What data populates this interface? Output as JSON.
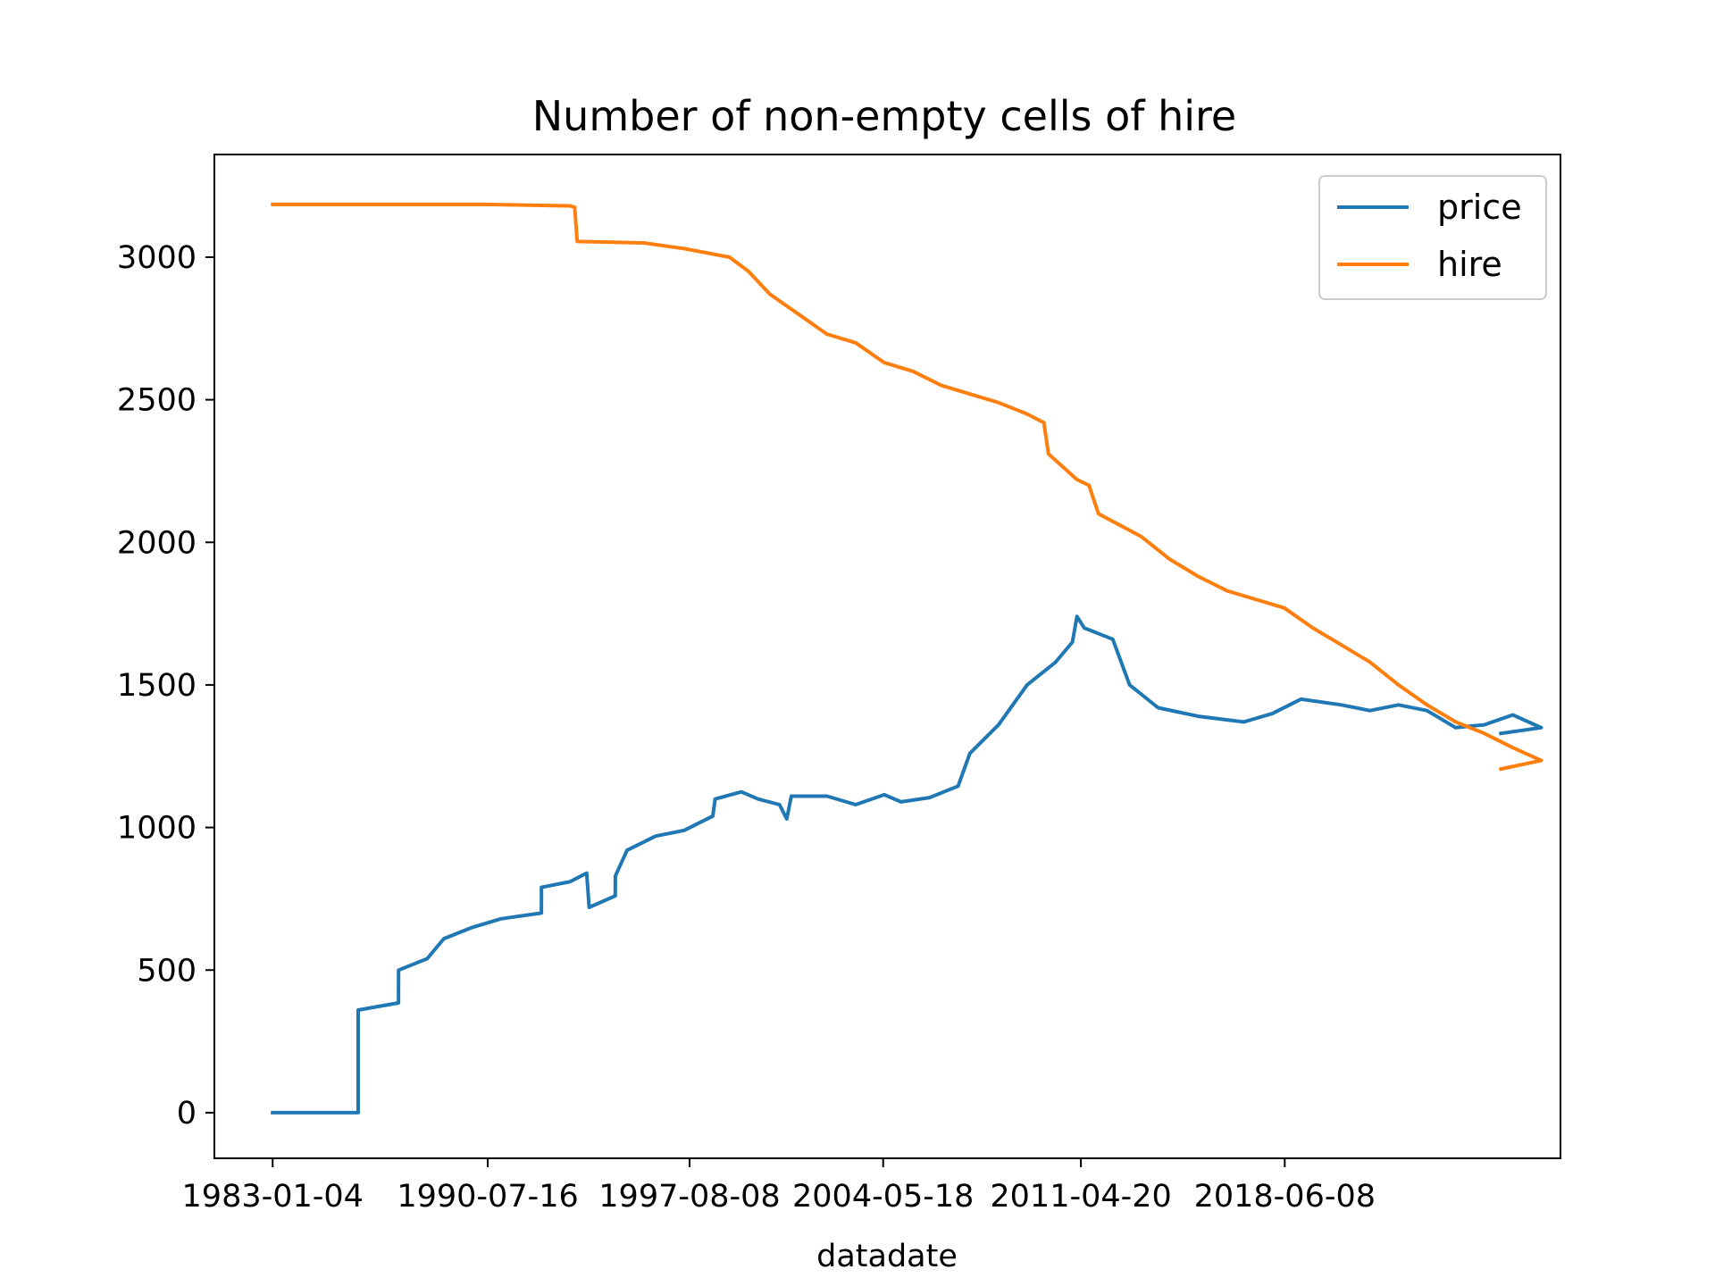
{
  "chart_data": {
    "type": "line",
    "title": "Number of non-empty cells of hire",
    "xlabel": "datadate",
    "ylabel": "",
    "x_tick_labels": [
      "1983-01-04",
      "1990-07-16",
      "1997-08-08",
      "2004-05-18",
      "2011-04-20",
      "2018-06-08"
    ],
    "y_ticks": [
      0,
      500,
      1000,
      1500,
      2000,
      2500,
      3000
    ],
    "xlim": [
      "1980-12-20",
      "2028-02-01"
    ],
    "ylim": [
      -160,
      3360
    ],
    "grid": false,
    "legend": "upper right",
    "series": [
      {
        "name": "price",
        "color": "#1f77b4",
        "points": [
          [
            "1983-01-04",
            0
          ],
          [
            "1986-01-01",
            0
          ],
          [
            "1986-01-02",
            360
          ],
          [
            "1987-06-01",
            385
          ],
          [
            "1987-06-02",
            500
          ],
          [
            "1988-06-01",
            540
          ],
          [
            "1989-01-01",
            610
          ],
          [
            "1990-01-01",
            650
          ],
          [
            "1991-01-01",
            680
          ],
          [
            "1992-06-01",
            700
          ],
          [
            "1992-06-02",
            790
          ],
          [
            "1993-06-01",
            810
          ],
          [
            "1994-01-01",
            840
          ],
          [
            "1994-02-01",
            720
          ],
          [
            "1995-01-01",
            760
          ],
          [
            "1995-01-02",
            830
          ],
          [
            "1995-06-01",
            920
          ],
          [
            "1996-06-01",
            970
          ],
          [
            "1997-06-01",
            990
          ],
          [
            "1998-06-01",
            1040
          ],
          [
            "1998-07-01",
            1100
          ],
          [
            "1999-06-01",
            1125
          ],
          [
            "2000-01-01",
            1100
          ],
          [
            "2000-10-01",
            1080
          ],
          [
            "2001-01-01",
            1030
          ],
          [
            "2001-03-01",
            1110
          ],
          [
            "2002-06-01",
            1110
          ],
          [
            "2003-06-01",
            1080
          ],
          [
            "2004-06-01",
            1115
          ],
          [
            "2005-01-01",
            1090
          ],
          [
            "2006-01-01",
            1105
          ],
          [
            "2007-01-01",
            1145
          ],
          [
            "2007-06-01",
            1260
          ],
          [
            "2008-06-01",
            1360
          ],
          [
            "2009-06-01",
            1500
          ],
          [
            "2010-06-01",
            1580
          ],
          [
            "2011-01-01",
            1650
          ],
          [
            "2011-03-01",
            1740
          ],
          [
            "2011-06-01",
            1700
          ],
          [
            "2012-06-01",
            1660
          ],
          [
            "2013-01-01",
            1500
          ],
          [
            "2014-01-01",
            1420
          ],
          [
            "2015-06-01",
            1390
          ],
          [
            "2017-01-01",
            1370
          ],
          [
            "2018-01-01",
            1400
          ],
          [
            "2019-01-01",
            1450
          ],
          [
            "2020-06-01",
            1430
          ],
          [
            "2021-06-01",
            1410
          ],
          [
            "2022-06-01",
            1430
          ],
          [
            "2023-06-01",
            1410
          ],
          [
            "2024-06-01",
            1350
          ],
          [
            "2025-06-01",
            1360
          ],
          [
            "2026-06-01",
            1395
          ],
          [
            "2027-06-01",
            1350
          ],
          [
            "2025-12-31",
            1330
          ]
        ]
      },
      {
        "name": "hire",
        "color": "#ff7f0e",
        "points": [
          [
            "1983-01-04",
            3185
          ],
          [
            "1990-06-01",
            3185
          ],
          [
            "1993-06-01",
            3180
          ],
          [
            "1993-08-01",
            3175
          ],
          [
            "1993-09-01",
            3055
          ],
          [
            "1996-01-01",
            3050
          ],
          [
            "1997-06-01",
            3030
          ],
          [
            "1999-01-01",
            3000
          ],
          [
            "1999-09-01",
            2950
          ],
          [
            "2000-06-01",
            2870
          ],
          [
            "2001-06-01",
            2800
          ],
          [
            "2002-06-01",
            2730
          ],
          [
            "2003-06-01",
            2700
          ],
          [
            "2004-06-01",
            2630
          ],
          [
            "2005-06-01",
            2600
          ],
          [
            "2006-06-01",
            2550
          ],
          [
            "2007-06-01",
            2520
          ],
          [
            "2008-06-01",
            2490
          ],
          [
            "2009-06-01",
            2450
          ],
          [
            "2010-01-01",
            2420
          ],
          [
            "2010-03-01",
            2310
          ],
          [
            "2011-03-01",
            2220
          ],
          [
            "2011-08-01",
            2200
          ],
          [
            "2011-12-01",
            2100
          ],
          [
            "2013-06-01",
            2020
          ],
          [
            "2014-06-01",
            1940
          ],
          [
            "2015-06-01",
            1880
          ],
          [
            "2016-06-01",
            1830
          ],
          [
            "2018-06-01",
            1770
          ],
          [
            "2019-06-01",
            1700
          ],
          [
            "2020-06-01",
            1640
          ],
          [
            "2021-06-01",
            1580
          ],
          [
            "2022-06-01",
            1500
          ],
          [
            "2023-06-01",
            1430
          ],
          [
            "2024-06-01",
            1370
          ],
          [
            "2025-06-01",
            1330
          ],
          [
            "2026-06-01",
            1280
          ],
          [
            "2027-06-01",
            1235
          ],
          [
            "2025-12-31",
            1205
          ]
        ]
      }
    ]
  }
}
